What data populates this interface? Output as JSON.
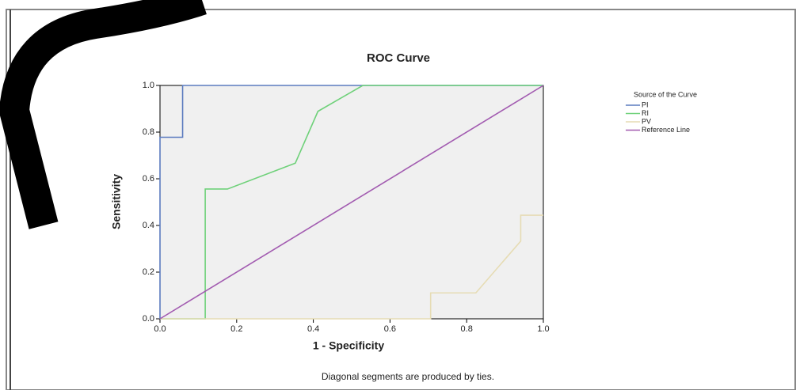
{
  "chart_data": {
    "type": "line",
    "title": "ROC Curve",
    "x_label": "1 - Specificity",
    "y_label": "Sensitivity",
    "footnote": "Diagonal segments are produced by ties.",
    "legend_title": "Source of the Curve",
    "legend": "right",
    "xlim": [
      0,
      1
    ],
    "ylim": [
      0,
      1
    ],
    "xticks": [
      {
        "value": 0,
        "label": "0.0"
      },
      0.2,
      0.4,
      0.6,
      0.8,
      {
        "value": 1,
        "label": "1.0"
      }
    ],
    "yticks": [
      {
        "value": 0,
        "label": "0.0"
      },
      0.2,
      0.4,
      0.6,
      0.8,
      {
        "value": 1,
        "label": "1.0"
      }
    ],
    "series": [
      {
        "name": "PI",
        "color": "#5b7bbf",
        "x": [
          0,
          0,
          0.059,
          0.059,
          1
        ],
        "values": [
          0,
          0.778,
          0.778,
          1,
          1
        ]
      },
      {
        "name": "RI",
        "color": "#6fd17a",
        "x": [
          0,
          0.118,
          0.118,
          0.176,
          0.353,
          0.412,
          0.529,
          1
        ],
        "values": [
          0,
          0,
          0.556,
          0.556,
          0.667,
          0.889,
          1,
          1
        ]
      },
      {
        "name": "PV",
        "color": "#e6dcb4",
        "x": [
          0,
          0.706,
          0.706,
          0.824,
          0.941,
          0.941,
          1
        ],
        "values": [
          0,
          0,
          0.111,
          0.111,
          0.333,
          0.444,
          0.444
        ]
      },
      {
        "name": "Reference Line",
        "color": "#a25bb0",
        "x": [
          0,
          1
        ],
        "values": [
          0,
          1
        ]
      }
    ]
  }
}
